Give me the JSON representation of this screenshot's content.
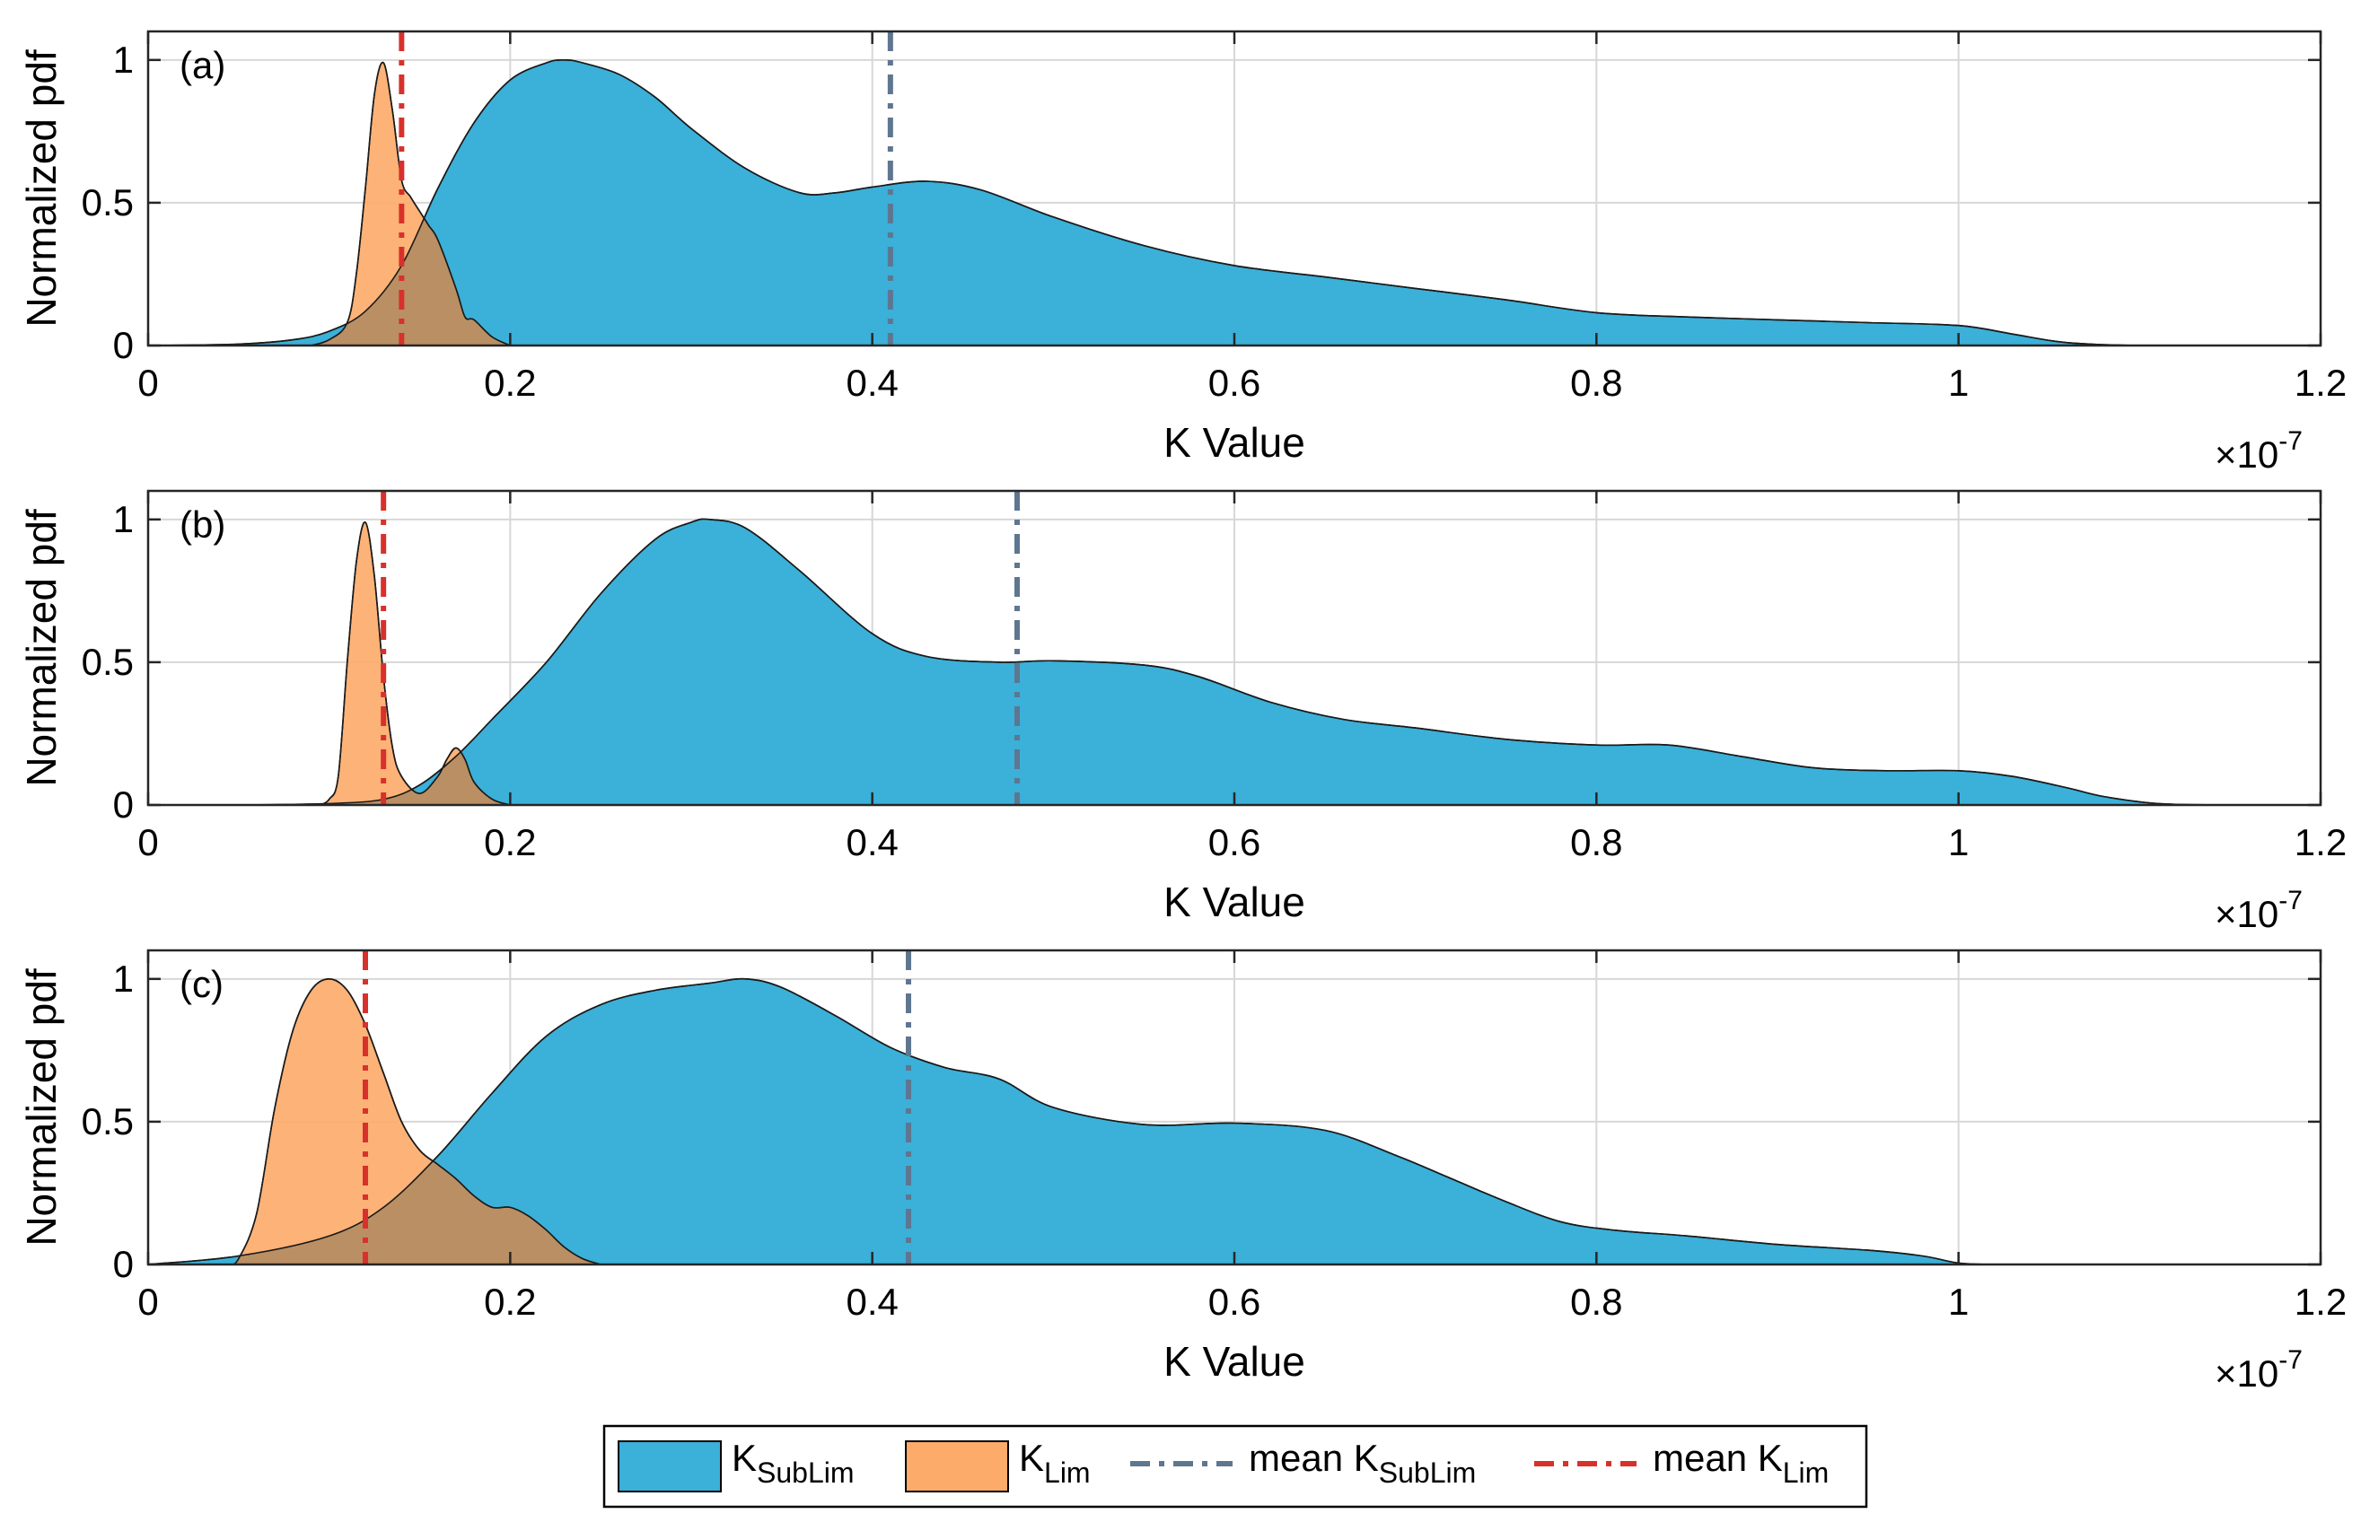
{
  "chart_data": [
    {
      "type": "area",
      "panel_label": "(a)",
      "xlabel": "K Value",
      "ylabel": "Normalized pdf",
      "x_exponent": "×10",
      "x_exponent_power": "-7",
      "xlim": [
        0,
        1.2
      ],
      "ylim": [
        0,
        1.1
      ],
      "xticks": [
        "0",
        "0.2",
        "0.4",
        "0.6",
        "0.8",
        "1",
        "1.2"
      ],
      "yticks": [
        "0",
        "0.5",
        "1"
      ],
      "series": [
        {
          "name": "K_SubLim",
          "x": [
            0,
            0.05,
            0.08,
            0.1,
            0.12,
            0.14,
            0.16,
            0.18,
            0.2,
            0.22,
            0.23,
            0.24,
            0.26,
            0.28,
            0.3,
            0.33,
            0.36,
            0.38,
            0.4,
            0.43,
            0.46,
            0.5,
            0.55,
            0.6,
            0.65,
            0.7,
            0.75,
            0.8,
            0.85,
            0.9,
            0.95,
            1.0,
            1.03,
            1.06,
            1.1,
            1.15
          ],
          "values": [
            0,
            0.005,
            0.02,
            0.05,
            0.12,
            0.28,
            0.55,
            0.78,
            0.93,
            0.99,
            1.0,
            0.99,
            0.95,
            0.87,
            0.76,
            0.62,
            0.535,
            0.535,
            0.555,
            0.575,
            0.545,
            0.45,
            0.35,
            0.28,
            0.24,
            0.2,
            0.16,
            0.115,
            0.1,
            0.09,
            0.08,
            0.07,
            0.04,
            0.01,
            0.0,
            0.0
          ]
        },
        {
          "name": "K_Lim",
          "x": [
            0.09,
            0.1,
            0.11,
            0.115,
            0.12,
            0.125,
            0.13,
            0.135,
            0.14,
            0.145,
            0.15,
            0.155,
            0.16,
            0.17,
            0.175,
            0.18,
            0.19,
            0.2
          ],
          "values": [
            0,
            0.02,
            0.08,
            0.25,
            0.55,
            0.88,
            0.99,
            0.82,
            0.58,
            0.52,
            0.47,
            0.42,
            0.37,
            0.2,
            0.1,
            0.09,
            0.03,
            0
          ]
        }
      ],
      "mean_lines": [
        {
          "name": "mean K_SubLim",
          "x": 0.41,
          "color": "#5e7690"
        },
        {
          "name": "mean K_Lim",
          "x": 0.14,
          "color": "#d8312b"
        }
      ]
    },
    {
      "type": "area",
      "panel_label": "(b)",
      "xlabel": "K Value",
      "ylabel": "Normalized pdf",
      "x_exponent": "×10",
      "x_exponent_power": "-7",
      "xlim": [
        0,
        1.2
      ],
      "ylim": [
        0,
        1.1
      ],
      "xticks": [
        "0",
        "0.2",
        "0.4",
        "0.6",
        "0.8",
        "1",
        "1.2"
      ],
      "yticks": [
        "0",
        "0.5",
        "1"
      ],
      "series": [
        {
          "name": "K_SubLim",
          "x": [
            0.05,
            0.1,
            0.13,
            0.15,
            0.17,
            0.19,
            0.22,
            0.25,
            0.28,
            0.3,
            0.31,
            0.33,
            0.36,
            0.4,
            0.43,
            0.47,
            0.5,
            0.55,
            0.58,
            0.62,
            0.66,
            0.7,
            0.75,
            0.8,
            0.84,
            0.88,
            0.92,
            0.96,
            1.0,
            1.03,
            1.06,
            1.08,
            1.11,
            1.15
          ],
          "values": [
            0,
            0.005,
            0.02,
            0.07,
            0.17,
            0.3,
            0.5,
            0.74,
            0.93,
            0.99,
            1.0,
            0.97,
            0.82,
            0.6,
            0.52,
            0.5,
            0.505,
            0.49,
            0.45,
            0.36,
            0.3,
            0.27,
            0.23,
            0.21,
            0.21,
            0.17,
            0.13,
            0.12,
            0.12,
            0.1,
            0.06,
            0.03,
            0.005,
            0
          ]
        },
        {
          "name": "K_Lim",
          "x": [
            0.095,
            0.1,
            0.105,
            0.11,
            0.115,
            0.12,
            0.125,
            0.13,
            0.135,
            0.14,
            0.15,
            0.16,
            0.165,
            0.17,
            0.175,
            0.18,
            0.19,
            0.2
          ],
          "values": [
            0,
            0.02,
            0.1,
            0.5,
            0.85,
            0.99,
            0.8,
            0.45,
            0.2,
            0.1,
            0.04,
            0.1,
            0.16,
            0.2,
            0.16,
            0.08,
            0.02,
            0
          ]
        }
      ],
      "mean_lines": [
        {
          "name": "mean K_SubLim",
          "x": 0.48,
          "color": "#5e7690"
        },
        {
          "name": "mean K_Lim",
          "x": 0.13,
          "color": "#d8312b"
        }
      ]
    },
    {
      "type": "area",
      "panel_label": "(c)",
      "xlabel": "K Value",
      "ylabel": "Normalized pdf",
      "x_exponent": "×10",
      "x_exponent_power": "-7",
      "xlim": [
        0,
        1.2
      ],
      "ylim": [
        0,
        1.1
      ],
      "xticks": [
        "0",
        "0.2",
        "0.4",
        "0.6",
        "0.8",
        "1",
        "1.2"
      ],
      "yticks": [
        "0",
        "0.5",
        "1"
      ],
      "series": [
        {
          "name": "K_SubLim",
          "x": [
            0,
            0.05,
            0.1,
            0.13,
            0.16,
            0.19,
            0.22,
            0.25,
            0.28,
            0.31,
            0.33,
            0.35,
            0.38,
            0.41,
            0.44,
            0.47,
            0.5,
            0.55,
            0.6,
            0.65,
            0.69,
            0.72,
            0.75,
            0.78,
            0.81,
            0.85,
            0.9,
            0.95,
            0.98,
            1.0,
            1.02
          ],
          "values": [
            0,
            0.03,
            0.1,
            0.2,
            0.38,
            0.6,
            0.8,
            0.91,
            0.96,
            0.985,
            1.0,
            0.97,
            0.87,
            0.76,
            0.69,
            0.65,
            0.55,
            0.49,
            0.495,
            0.47,
            0.38,
            0.3,
            0.22,
            0.15,
            0.12,
            0.1,
            0.07,
            0.05,
            0.03,
            0.005,
            0
          ]
        },
        {
          "name": "K_Lim",
          "x": [
            0.045,
            0.05,
            0.06,
            0.07,
            0.08,
            0.09,
            0.1,
            0.11,
            0.12,
            0.13,
            0.14,
            0.15,
            0.16,
            0.17,
            0.18,
            0.19,
            0.2,
            0.21,
            0.22,
            0.23,
            0.24,
            0.25
          ],
          "values": [
            0,
            0.02,
            0.18,
            0.55,
            0.82,
            0.96,
            1.0,
            0.96,
            0.84,
            0.67,
            0.5,
            0.4,
            0.35,
            0.3,
            0.24,
            0.2,
            0.2,
            0.17,
            0.12,
            0.06,
            0.02,
            0
          ]
        }
      ],
      "mean_lines": [
        {
          "name": "mean K_SubLim",
          "x": 0.42,
          "color": "#5e7690"
        },
        {
          "name": "mean K_Lim",
          "x": 0.12,
          "color": "#d8312b"
        }
      ]
    }
  ],
  "colors": {
    "sublim_fill": "#3bb0d8",
    "lim_fill": "#fdab6b",
    "overlap_fill": "#ba8f63",
    "mean_sublim": "#5e7690",
    "mean_lim": "#d8312b",
    "grid": "#d7d7d7"
  },
  "legend": {
    "sublim": {
      "base": "K",
      "sub": "SubLim"
    },
    "lim": {
      "base": "K",
      "sub": "Lim"
    },
    "mean_sublim": {
      "prefix": "mean K",
      "sub": "SubLim"
    },
    "mean_lim": {
      "prefix": "mean K",
      "sub": "Lim"
    }
  }
}
